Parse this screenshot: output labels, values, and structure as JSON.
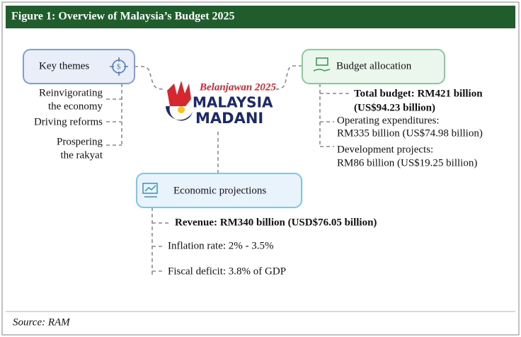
{
  "header": {
    "title": "Figure 1: Overview of Malaysia’s Budget 2025"
  },
  "logo": {
    "script": "Belanjawan 2025",
    "line1": "MALAYSIA",
    "line2": "MADANI"
  },
  "key_themes": {
    "title": "Key themes",
    "items": [
      [
        "Reinvigorating",
        "the economy"
      ],
      [
        "Driving reforms"
      ],
      [
        "Prospering",
        "the rakyat"
      ]
    ]
  },
  "budget_allocation": {
    "title": "Budget allocation",
    "total": [
      "Total budget: RM421 billion",
      "(US$94.23 billion)"
    ],
    "items": [
      [
        "Operating expenditures:",
        "RM335 billion (US$74.98 billion)"
      ],
      [
        "Development projects:",
        "RM86 billion (US$19.25 billion)"
      ]
    ]
  },
  "economic_projections": {
    "title": "Economic projections",
    "revenue": "Revenue: RM340 billion (USD$76.05 billion)",
    "items": [
      "Inflation rate: 2% - 3.5%",
      "Fiscal deficit: 3.8% of GDP"
    ]
  },
  "source": "Source: RAM"
}
